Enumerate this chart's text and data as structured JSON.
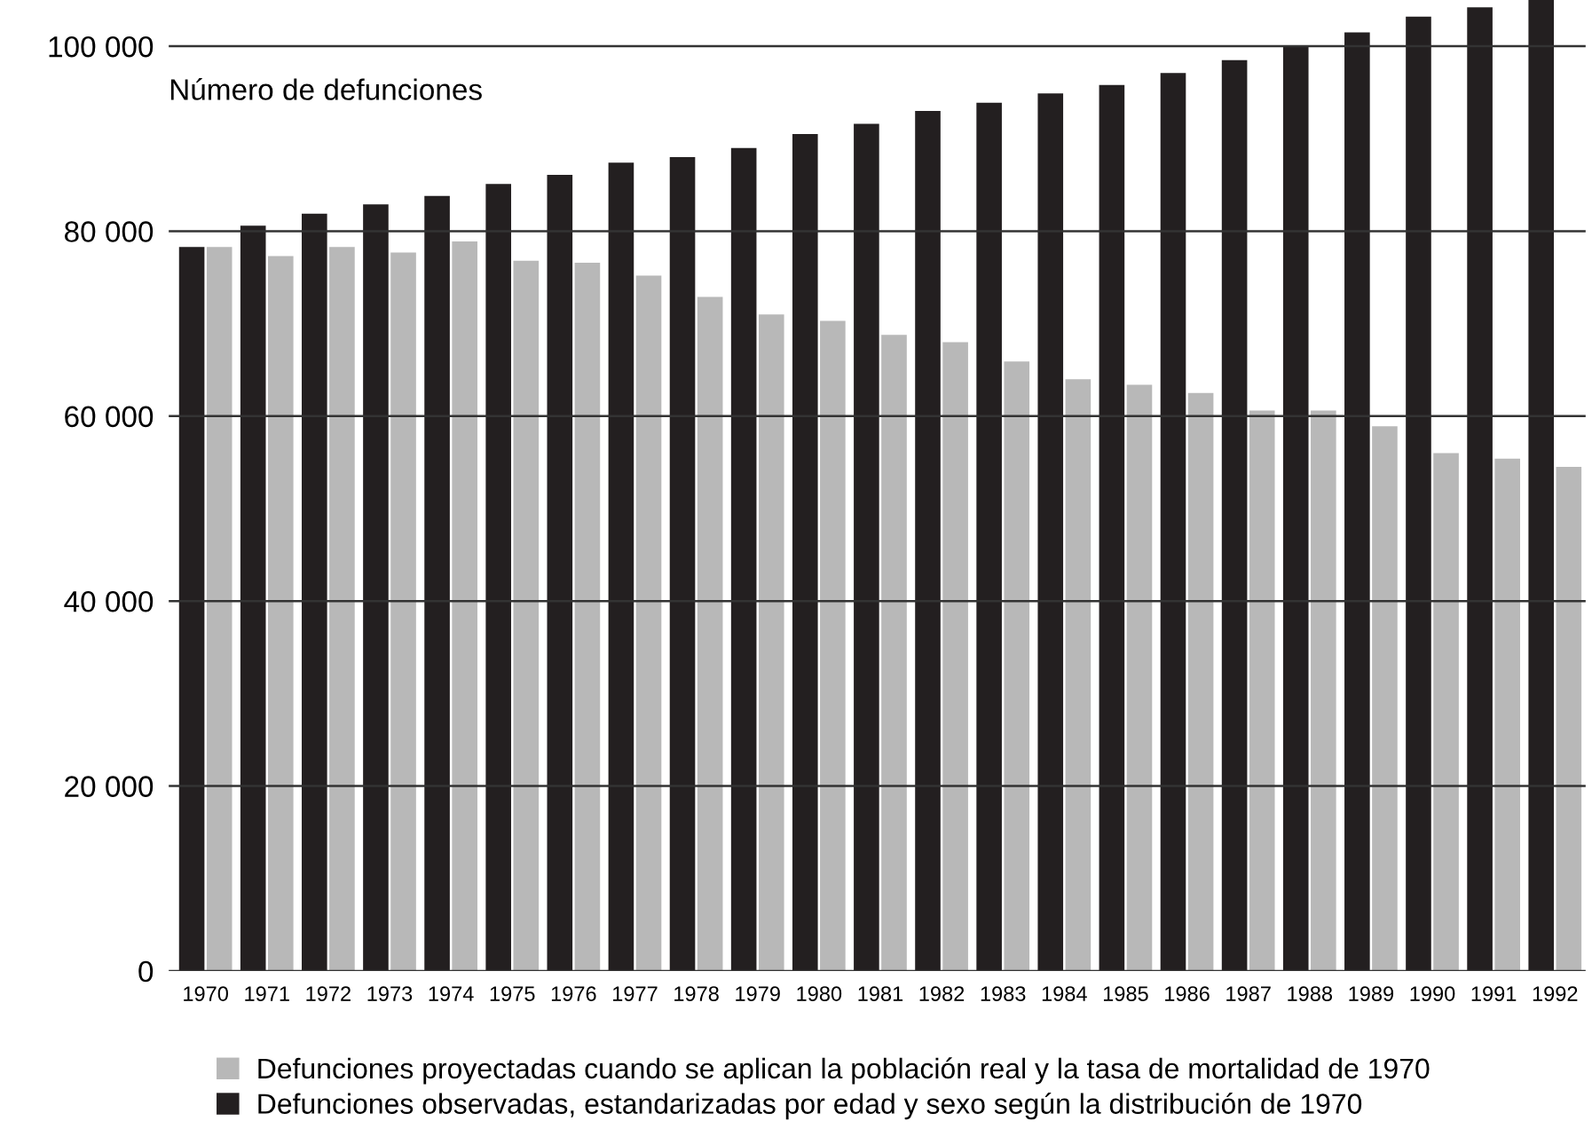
{
  "chart_data": {
    "type": "bar",
    "ylabel": "Número de defunciones",
    "categories": [
      "1970",
      "1971",
      "1972",
      "1973",
      "1974",
      "1975",
      "1976",
      "1977",
      "1978",
      "1979",
      "1980",
      "1981",
      "1982",
      "1983",
      "1984",
      "1985",
      "1986",
      "1987",
      "1988",
      "1989",
      "1990",
      "1991",
      "1992"
    ],
    "series": [
      {
        "name": "Defunciones observadas, estandarizadas por edad y sexo según la distribución de 1970",
        "color": "#231f20",
        "values": [
          78300,
          80600,
          81900,
          82900,
          83800,
          85100,
          86100,
          87400,
          88000,
          89000,
          90500,
          91600,
          93000,
          93900,
          94900,
          95800,
          97100,
          98500,
          100000,
          101500,
          103200,
          104200,
          105000
        ]
      },
      {
        "name": "Defunciones proyectadas cuando se aplican la población real y la tasa de mortalidad de 1970",
        "color": "#b8b8b8",
        "values": [
          78300,
          77300,
          78300,
          77700,
          78900,
          76800,
          76600,
          75200,
          72900,
          71000,
          70300,
          68800,
          68000,
          65900,
          64000,
          63400,
          62500,
          60600,
          60600,
          58900,
          56000,
          55400,
          54500
        ]
      }
    ],
    "ylim": [
      0,
      105000
    ],
    "yticks": [
      {
        "value": 0,
        "label": "0"
      },
      {
        "value": 20000,
        "label": "20 000"
      },
      {
        "value": 40000,
        "label": "40 000"
      },
      {
        "value": 60000,
        "label": "60 000"
      },
      {
        "value": 80000,
        "label": "80 000"
      },
      {
        "value": 100000,
        "label": "100 000"
      }
    ],
    "grid": "y",
    "legend": "bottom"
  }
}
